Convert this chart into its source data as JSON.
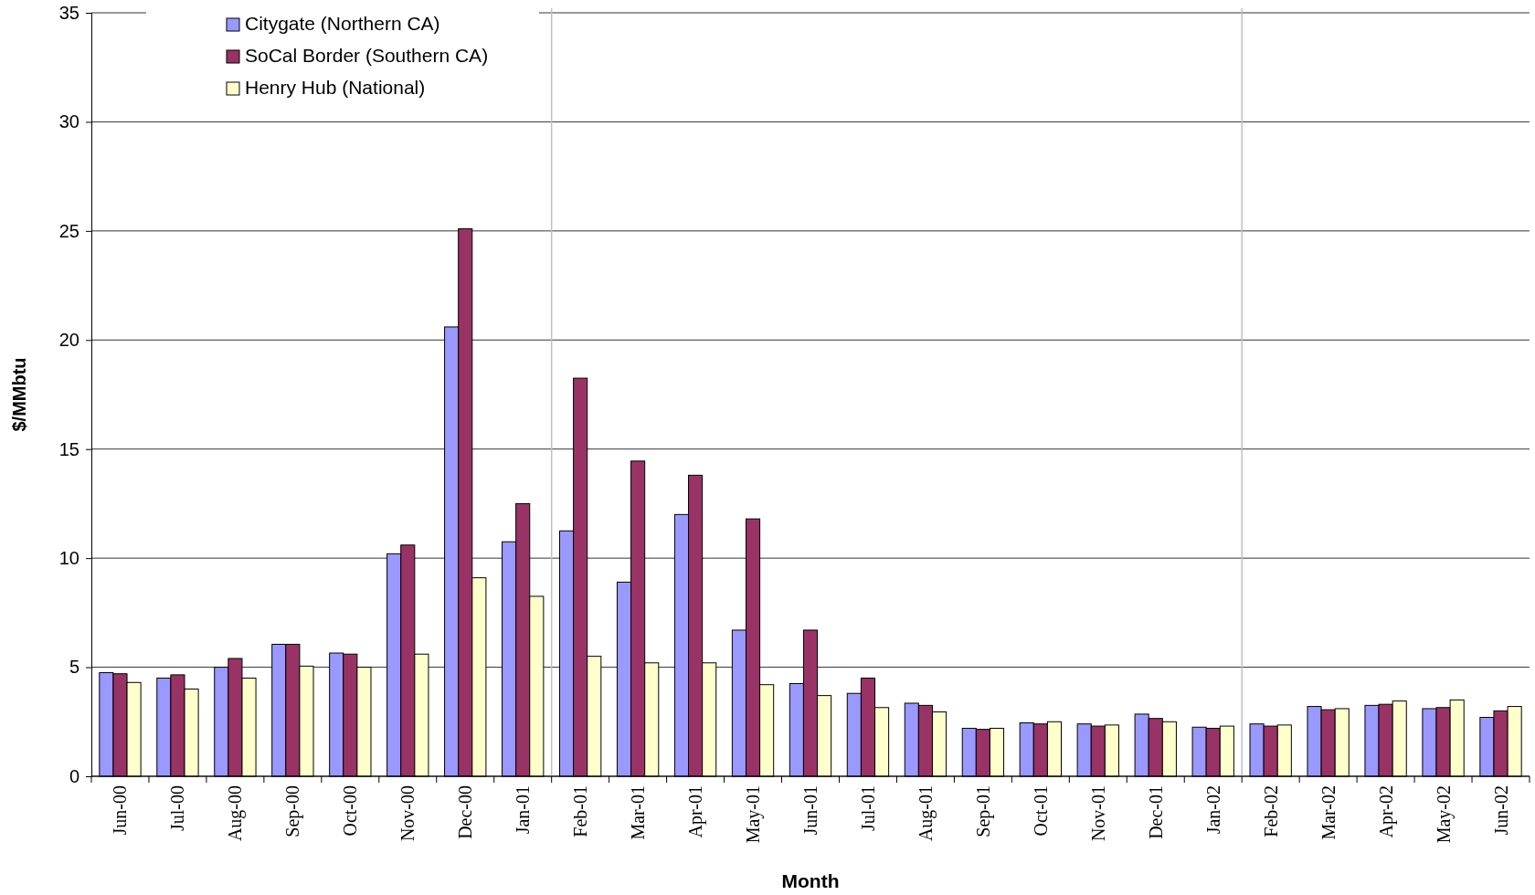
{
  "chart_data": {
    "type": "bar",
    "xlabel": "Month",
    "ylabel": "$/MMbtu",
    "categories": [
      "Jun-00",
      "Jul-00",
      "Aug-00",
      "Sep-00",
      "Oct-00",
      "Nov-00",
      "Dec-00",
      "Jan-01",
      "Feb-01",
      "Mar-01",
      "Apr-01",
      "May-01",
      "Jun-01",
      "Jul-01",
      "Aug-01",
      "Sep-01",
      "Oct-01",
      "Nov-01",
      "Dec-01",
      "Jan-02",
      "Feb-02",
      "Mar-02",
      "Apr-02",
      "May-02",
      "Jun-02"
    ],
    "series": [
      {
        "name": "Citygate (Northern CA)",
        "color": "#9999ff",
        "values": [
          4.75,
          4.5,
          5.0,
          6.05,
          5.65,
          10.2,
          20.6,
          10.75,
          11.25,
          8.9,
          12.0,
          6.7,
          4.25,
          3.8,
          3.35,
          2.2,
          2.45,
          2.4,
          2.85,
          2.25,
          2.4,
          3.2,
          3.25,
          3.1,
          2.7
        ]
      },
      {
        "name": "SoCal Border (Southern CA)",
        "color": "#993366",
        "values": [
          4.7,
          4.65,
          5.4,
          6.05,
          5.6,
          10.6,
          25.1,
          12.5,
          18.25,
          14.45,
          13.8,
          11.8,
          6.7,
          4.5,
          3.25,
          2.15,
          2.4,
          2.3,
          2.65,
          2.2,
          2.3,
          3.05,
          3.3,
          3.15,
          3.0
        ]
      },
      {
        "name": "Henry Hub (National)",
        "color": "#ffffcc",
        "values": [
          4.3,
          4.0,
          4.5,
          5.05,
          5.0,
          5.6,
          9.1,
          8.25,
          5.5,
          5.2,
          5.2,
          4.2,
          3.7,
          3.15,
          2.95,
          2.2,
          2.5,
          2.35,
          2.5,
          2.3,
          2.35,
          3.1,
          3.45,
          3.5,
          3.2
        ]
      }
    ],
    "ylim": [
      0,
      35
    ],
    "yticks": [
      0,
      5,
      10,
      15,
      20,
      25,
      30,
      35
    ],
    "grid": "y",
    "legend": "top left"
  }
}
